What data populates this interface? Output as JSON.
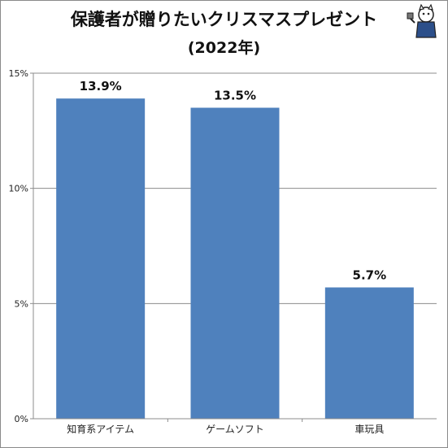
{
  "title_line1": "保護者が贈りたいクリスマスプレゼント",
  "title_line2": "(2022年)",
  "chart_data": {
    "type": "bar",
    "categories": [
      "知育系アイテム",
      "ゲームソフト",
      "車玩具"
    ],
    "values": [
      13.9,
      13.5,
      5.7
    ],
    "data_labels": [
      "13.9%",
      "13.5%",
      "5.7%"
    ],
    "ylim": [
      0,
      15
    ],
    "yticks": [
      0,
      5,
      10,
      15
    ],
    "ytick_labels": [
      "0%",
      "5%",
      "10%",
      "15%"
    ],
    "grid": true,
    "bar_color": "#4f81bd"
  },
  "mascot_icon": "cat-mascot-icon"
}
